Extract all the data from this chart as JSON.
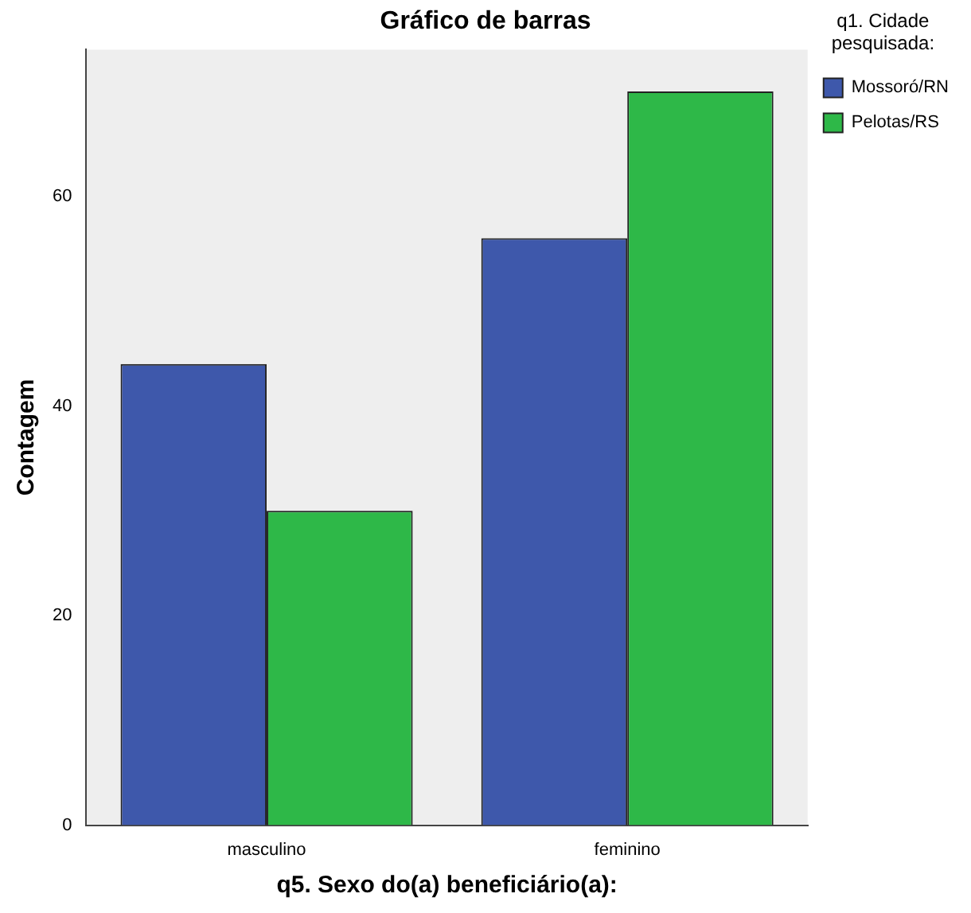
{
  "chart_data": {
    "type": "bar",
    "title": "Gráfico de barras",
    "xlabel": "q5. Sexo do(a) beneficiário(a):",
    "ylabel": "Contagem",
    "legend_title": "q1. Cidade pesquisada:",
    "categories": [
      "masculino",
      "feminino"
    ],
    "series": [
      {
        "name": "Mossoró/RN",
        "color": "#3e58ab",
        "values": [
          44,
          56
        ]
      },
      {
        "name": "Pelotas/RS",
        "color": "#2eb848",
        "values": [
          30,
          70
        ]
      }
    ],
    "ylim": [
      0,
      74
    ],
    "yticks": [
      0,
      20,
      40,
      60
    ],
    "grid": false,
    "legend": "right"
  }
}
